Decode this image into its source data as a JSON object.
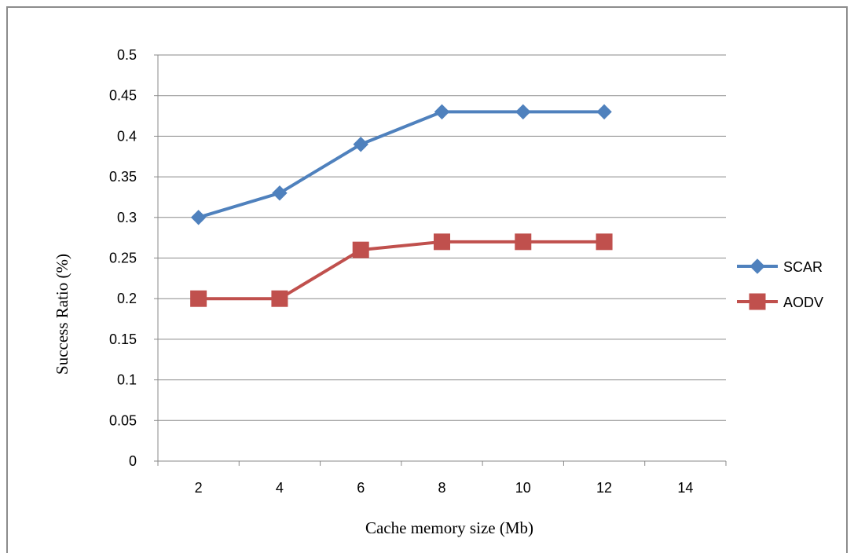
{
  "chart_data": {
    "type": "line",
    "title": "",
    "xlabel": "Cache memory size (Mb)",
    "ylabel": "Success  Ratio (%)",
    "x_ticks": [
      2,
      4,
      6,
      8,
      10,
      12,
      14
    ],
    "y_ticks": [
      "0",
      "0.05",
      "0.1",
      "0.15",
      "0.2",
      "0.25",
      "0.3",
      "0.35",
      "0.4",
      "0.45",
      "0.5"
    ],
    "xlim": [
      1,
      15
    ],
    "ylim": [
      0,
      0.5
    ],
    "grid": "horizontal",
    "legend_position": "right",
    "series": [
      {
        "name": "SCAR",
        "color": "#4f81bd",
        "marker": "diamond",
        "x": [
          2,
          4,
          6,
          8,
          10,
          12
        ],
        "values": [
          0.3,
          0.33,
          0.39,
          0.43,
          0.43,
          0.43
        ]
      },
      {
        "name": "AODV",
        "color": "#c0504d",
        "marker": "square",
        "x": [
          2,
          4,
          6,
          8,
          10,
          12
        ],
        "values": [
          0.2,
          0.2,
          0.26,
          0.27,
          0.27,
          0.27
        ]
      }
    ]
  }
}
